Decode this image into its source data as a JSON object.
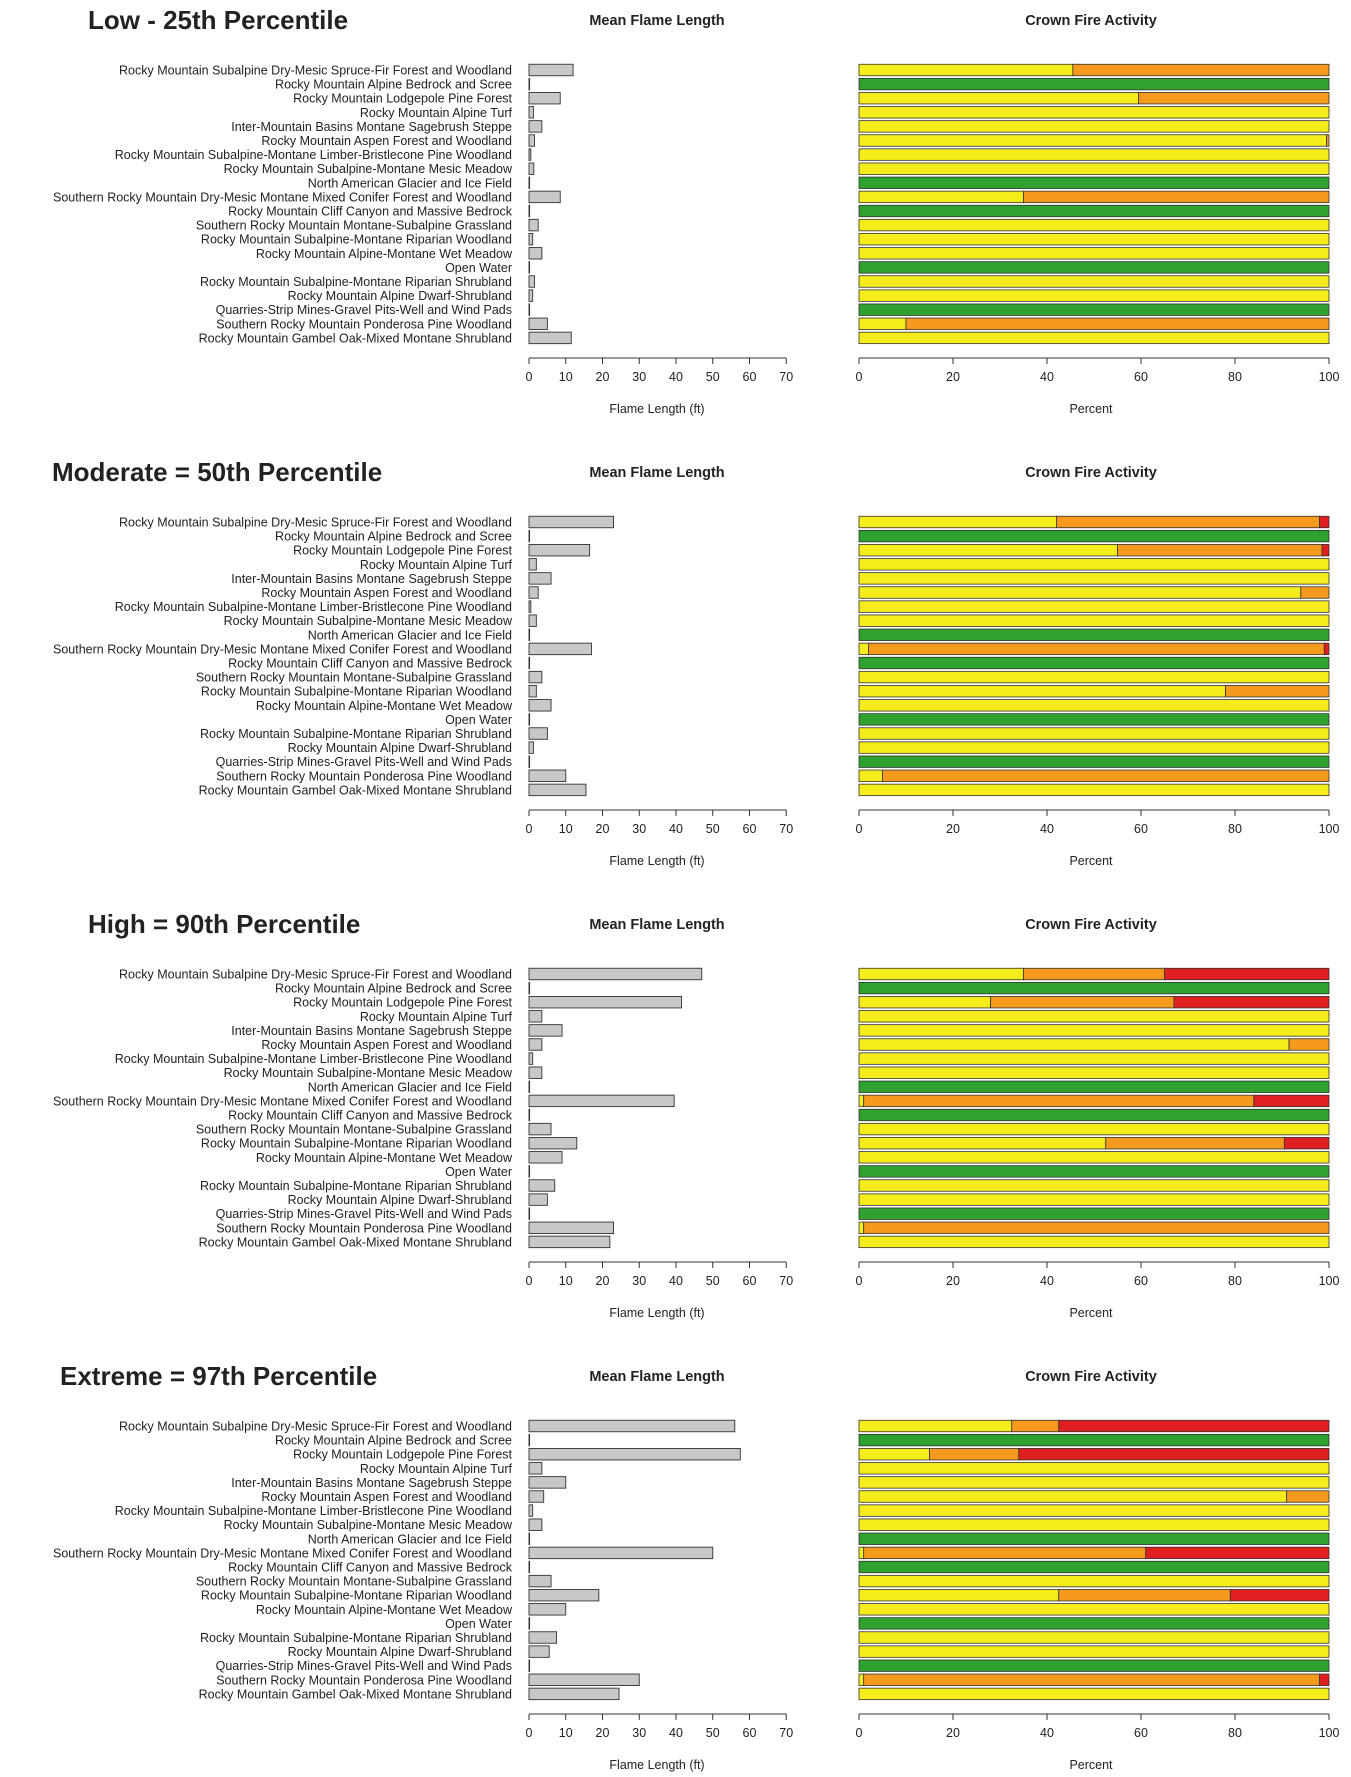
{
  "categories": [
    "Rocky Mountain Subalpine Dry-Mesic Spruce-Fir Forest and Woodland",
    "Rocky Mountain Alpine Bedrock and Scree",
    "Rocky Mountain Lodgepole Pine Forest",
    "Rocky Mountain Alpine Turf",
    "Inter-Mountain Basins Montane Sagebrush Steppe",
    "Rocky Mountain Aspen Forest and Woodland",
    "Rocky Mountain Subalpine-Montane Limber-Bristlecone Pine Woodland",
    "Rocky Mountain Subalpine-Montane Mesic Meadow",
    "North American Glacier and Ice Field",
    "Southern Rocky Mountain Dry-Mesic Montane Mixed Conifer Forest and Woodland",
    "Rocky Mountain Cliff Canyon and Massive Bedrock",
    "Southern Rocky Mountain Montane-Subalpine Grassland",
    "Rocky Mountain Subalpine-Montane Riparian Woodland",
    "Rocky Mountain Alpine-Montane Wet Meadow",
    "Open Water",
    "Rocky Mountain Subalpine-Montane Riparian Shrubland",
    "Rocky Mountain Alpine Dwarf-Shrubland",
    "Quarries-Strip Mines-Gravel Pits-Well and Wind Pads",
    "Southern Rocky Mountain Ponderosa Pine Woodland",
    "Rocky Mountain Gambel Oak-Mixed Montane Shrubland"
  ],
  "colors": {
    "bar_fill": "#c8c8c8",
    "bar_stroke": "#333333",
    "class_colors": [
      "#2ea12e",
      "#f5ec1c",
      "#f59a1c",
      "#e02020"
    ],
    "axis": "#333333",
    "text": "#222222"
  },
  "labels": {
    "flame_title": "Mean Flame Length",
    "crown_title": "Crown Fire Activity",
    "flame_xlabel": "Flame Length (ft)",
    "crown_xlabel": "Percent"
  },
  "chart_data": [
    {
      "type": "bar",
      "scenario": "Low - 25th Percentile",
      "flame_xlim": [
        0,
        70
      ],
      "flame_ticks": [
        0,
        10,
        20,
        30,
        40,
        50,
        60,
        70
      ],
      "crown_xlim": [
        0,
        100
      ],
      "crown_ticks": [
        0,
        20,
        40,
        60,
        80,
        100
      ],
      "flame_values": [
        12,
        0,
        8.5,
        1.2,
        3.5,
        1.5,
        0.5,
        1.3,
        0,
        8.5,
        0,
        2.5,
        1,
        3.5,
        0,
        1.5,
        1,
        0,
        5,
        11.5
      ],
      "crown_stacks": [
        [
          0,
          45.5,
          54.5,
          0
        ],
        [
          100,
          0,
          0,
          0
        ],
        [
          0,
          59.5,
          40.5,
          0
        ],
        [
          0,
          100,
          0,
          0
        ],
        [
          0,
          100,
          0,
          0
        ],
        [
          0,
          99.5,
          0.5,
          0
        ],
        [
          0,
          100,
          0,
          0
        ],
        [
          0,
          100,
          0,
          0
        ],
        [
          100,
          0,
          0,
          0
        ],
        [
          0,
          35,
          65,
          0
        ],
        [
          100,
          0,
          0,
          0
        ],
        [
          0,
          100,
          0,
          0
        ],
        [
          0,
          100,
          0,
          0
        ],
        [
          0,
          100,
          0,
          0
        ],
        [
          100,
          0,
          0,
          0
        ],
        [
          0,
          100,
          0,
          0
        ],
        [
          0,
          100,
          0,
          0
        ],
        [
          100,
          0,
          0,
          0
        ],
        [
          0,
          10,
          90,
          0
        ],
        [
          0,
          100,
          0,
          0
        ]
      ]
    },
    {
      "type": "bar",
      "scenario": "Moderate = 50th Percentile",
      "flame_xlim": [
        0,
        70
      ],
      "flame_ticks": [
        0,
        10,
        20,
        30,
        40,
        50,
        60,
        70
      ],
      "crown_xlim": [
        0,
        100
      ],
      "crown_ticks": [
        0,
        20,
        40,
        60,
        80,
        100
      ],
      "flame_values": [
        23,
        0,
        16.5,
        2,
        6,
        2.5,
        0.5,
        2,
        0,
        17,
        0,
        3.5,
        2,
        6,
        0,
        5,
        1.2,
        0,
        10,
        15.5
      ],
      "crown_stacks": [
        [
          0,
          42,
          56,
          2
        ],
        [
          100,
          0,
          0,
          0
        ],
        [
          0,
          55,
          43.5,
          1.5
        ],
        [
          0,
          100,
          0,
          0
        ],
        [
          0,
          100,
          0,
          0
        ],
        [
          0,
          94,
          6,
          0
        ],
        [
          0,
          100,
          0,
          0
        ],
        [
          0,
          100,
          0,
          0
        ],
        [
          100,
          0,
          0,
          0
        ],
        [
          0,
          2,
          97,
          1
        ],
        [
          100,
          0,
          0,
          0
        ],
        [
          0,
          100,
          0,
          0
        ],
        [
          0,
          78,
          22,
          0
        ],
        [
          0,
          100,
          0,
          0
        ],
        [
          100,
          0,
          0,
          0
        ],
        [
          0,
          100,
          0,
          0
        ],
        [
          0,
          100,
          0,
          0
        ],
        [
          100,
          0,
          0,
          0
        ],
        [
          0,
          5,
          95,
          0
        ],
        [
          0,
          100,
          0,
          0
        ]
      ]
    },
    {
      "type": "bar",
      "scenario": "High = 90th Percentile",
      "flame_xlim": [
        0,
        70
      ],
      "flame_ticks": [
        0,
        10,
        20,
        30,
        40,
        50,
        60,
        70
      ],
      "crown_xlim": [
        0,
        100
      ],
      "crown_ticks": [
        0,
        20,
        40,
        60,
        80,
        100
      ],
      "flame_values": [
        47,
        0,
        41.5,
        3.5,
        9,
        3.5,
        1,
        3.5,
        0,
        39.5,
        0,
        6,
        13,
        9,
        0,
        7,
        5,
        0,
        23,
        22
      ],
      "crown_stacks": [
        [
          0,
          35,
          30,
          35
        ],
        [
          100,
          0,
          0,
          0
        ],
        [
          0,
          28,
          39,
          33
        ],
        [
          0,
          100,
          0,
          0
        ],
        [
          0,
          100,
          0,
          0
        ],
        [
          0,
          91.5,
          8.5,
          0
        ],
        [
          0,
          100,
          0,
          0
        ],
        [
          0,
          100,
          0,
          0
        ],
        [
          100,
          0,
          0,
          0
        ],
        [
          0,
          1,
          83,
          16
        ],
        [
          100,
          0,
          0,
          0
        ],
        [
          0,
          100,
          0,
          0
        ],
        [
          0,
          52.5,
          38,
          9.5
        ],
        [
          0,
          100,
          0,
          0
        ],
        [
          100,
          0,
          0,
          0
        ],
        [
          0,
          100,
          0,
          0
        ],
        [
          0,
          100,
          0,
          0
        ],
        [
          100,
          0,
          0,
          0
        ],
        [
          0,
          1,
          99,
          0
        ],
        [
          0,
          100,
          0,
          0
        ]
      ]
    },
    {
      "type": "bar",
      "scenario": "Extreme = 97th Percentile",
      "flame_xlim": [
        0,
        70
      ],
      "flame_ticks": [
        0,
        10,
        20,
        30,
        40,
        50,
        60,
        70
      ],
      "crown_xlim": [
        0,
        100
      ],
      "crown_ticks": [
        0,
        20,
        40,
        60,
        80,
        100
      ],
      "flame_values": [
        56,
        0,
        57.5,
        3.5,
        10,
        4,
        1,
        3.5,
        0,
        50,
        0,
        6,
        19,
        10,
        0,
        7.5,
        5.5,
        0,
        30,
        24.5
      ],
      "crown_stacks": [
        [
          0,
          32.5,
          10,
          57.5
        ],
        [
          100,
          0,
          0,
          0
        ],
        [
          0,
          15,
          19,
          66
        ],
        [
          0,
          100,
          0,
          0
        ],
        [
          0,
          100,
          0,
          0
        ],
        [
          0,
          91,
          9,
          0
        ],
        [
          0,
          100,
          0,
          0
        ],
        [
          0,
          100,
          0,
          0
        ],
        [
          100,
          0,
          0,
          0
        ],
        [
          0,
          1,
          60,
          39
        ],
        [
          100,
          0,
          0,
          0
        ],
        [
          0,
          100,
          0,
          0
        ],
        [
          0,
          42.5,
          36.5,
          21
        ],
        [
          0,
          100,
          0,
          0
        ],
        [
          100,
          0,
          0,
          0
        ],
        [
          0,
          100,
          0,
          0
        ],
        [
          0,
          100,
          0,
          0
        ],
        [
          100,
          0,
          0,
          0
        ],
        [
          0,
          1,
          97,
          2
        ],
        [
          0,
          100,
          0,
          0
        ]
      ]
    }
  ]
}
